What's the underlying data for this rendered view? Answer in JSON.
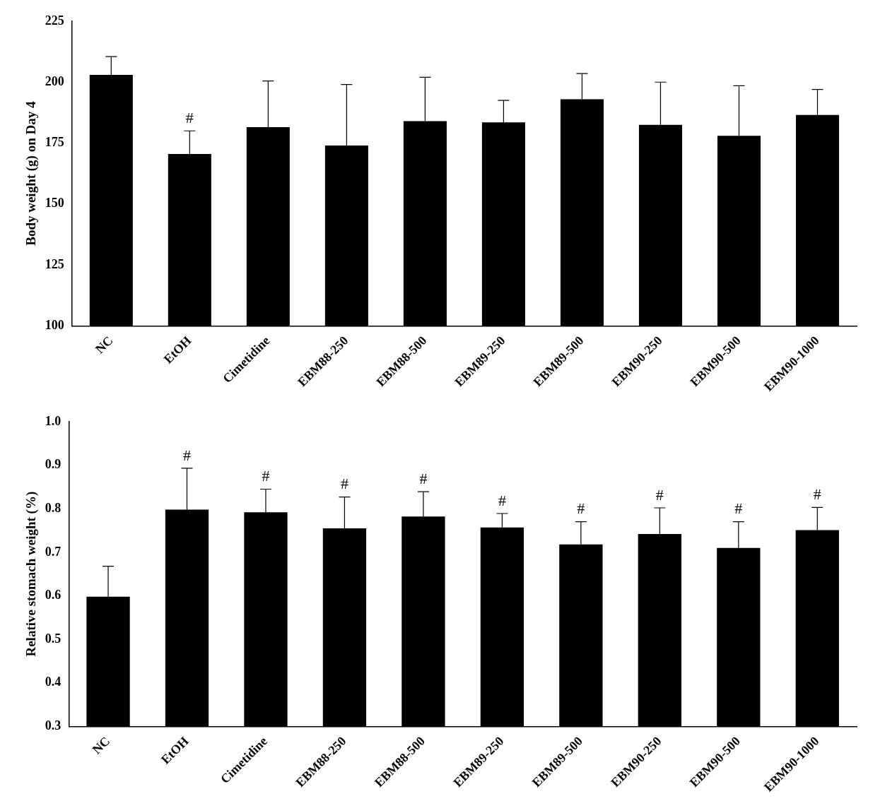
{
  "chart_data": [
    {
      "type": "bar",
      "y_label": "Body weight (g) on Day 4",
      "categories": [
        "NC",
        "EtOH",
        "Cimetidine",
        "EBM88-250",
        "EBM88-500",
        "EBM89-250",
        "EBM89-500",
        "EBM90-250",
        "EBM90-500",
        "EBM90-1000"
      ],
      "values": [
        203,
        170.5,
        181.5,
        174,
        184,
        183.5,
        193,
        182.5,
        178,
        186.5
      ],
      "errors": [
        7.5,
        9.5,
        19,
        25,
        18,
        9,
        10.5,
        17.5,
        20.5,
        10.5
      ],
      "annotations": [
        null,
        "#",
        null,
        null,
        null,
        null,
        null,
        null,
        null,
        null
      ],
      "color": "#000000",
      "ylim": [
        100,
        225
      ],
      "yticks": [
        100,
        125,
        150,
        175,
        200,
        225
      ],
      "grid": false
    },
    {
      "type": "bar",
      "y_label": "Relative stomach weight (%)",
      "categories": [
        "NC",
        "EtOH",
        "Cimetidine",
        "EBM88-250",
        "EBM88-500",
        "EBM89-250",
        "EBM89-500",
        "EBM90-250",
        "EBM90-500",
        "EBM90-1000"
      ],
      "values": [
        0.598,
        0.798,
        0.792,
        0.755,
        0.782,
        0.757,
        0.718,
        0.742,
        0.71,
        0.751
      ],
      "errors": [
        0.07,
        0.095,
        0.053,
        0.072,
        0.057,
        0.032,
        0.052,
        0.06,
        0.06,
        0.052
      ],
      "annotations": [
        null,
        "#",
        "#",
        "#",
        "#",
        "#",
        "#",
        "#",
        "#",
        "#"
      ],
      "color": "#000000",
      "ylim": [
        0.3,
        1.0
      ],
      "yticks": [
        0.3,
        0.4,
        0.5,
        0.6,
        0.7,
        0.8,
        0.9,
        {
          "value": 1,
          "label": "1.0"
        }
      ],
      "grid": false
    }
  ]
}
